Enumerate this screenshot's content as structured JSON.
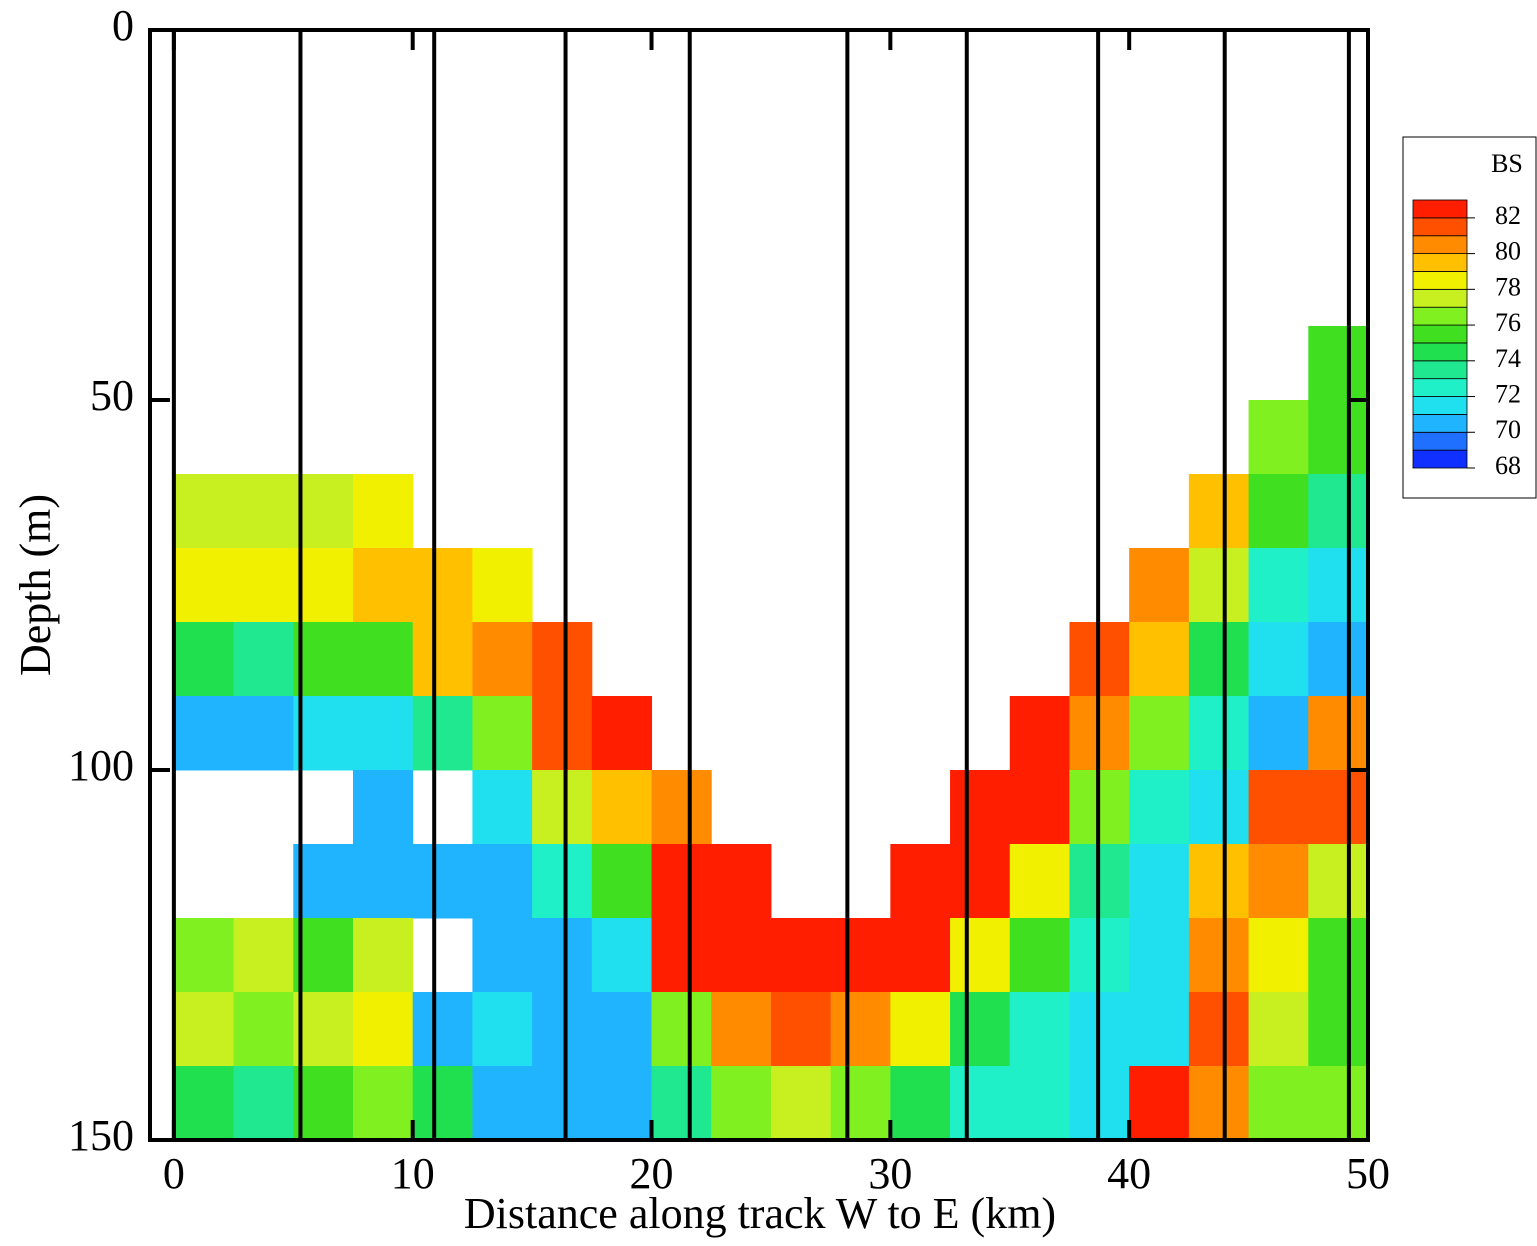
{
  "chart_data": {
    "type": "contour",
    "xlabel": "Distance along track W to E (km)",
    "ylabel": "Depth (m)",
    "xlim": [
      -1,
      50
    ],
    "xticks": [
      0,
      10,
      20,
      30,
      40,
      50
    ],
    "ylim": [
      0,
      150
    ],
    "yticks": [
      0,
      50,
      100,
      150
    ],
    "y_inverted": true,
    "x_edges": [
      0,
      2.5,
      5,
      7.5,
      10,
      12.5,
      15,
      17.5,
      20,
      22.5,
      25,
      27.5,
      30,
      32.5,
      35,
      37.5,
      40,
      42.5,
      45,
      47.5,
      50
    ],
    "y_edges": [
      0,
      10,
      20,
      30,
      40,
      50,
      60,
      70,
      80,
      90,
      100,
      110,
      120,
      130,
      140,
      150
    ],
    "z": [
      [
        null,
        null,
        null,
        null,
        null,
        null,
        77,
        78,
        74,
        70,
        null,
        null,
        76,
        77,
        74
      ],
      [
        null,
        null,
        null,
        null,
        null,
        null,
        77,
        78,
        73,
        70,
        null,
        null,
        77,
        76,
        73
      ],
      [
        null,
        null,
        null,
        null,
        null,
        null,
        77,
        78,
        75,
        71,
        null,
        70,
        75,
        77,
        75
      ],
      [
        null,
        null,
        null,
        null,
        null,
        null,
        78,
        79,
        75,
        71,
        70,
        70,
        77,
        78,
        76
      ],
      [
        null,
        null,
        null,
        null,
        null,
        null,
        null,
        79,
        79,
        73,
        null,
        70,
        null,
        70,
        74
      ],
      [
        null,
        null,
        null,
        null,
        null,
        null,
        null,
        78,
        80,
        76,
        71,
        70,
        70,
        71,
        70
      ],
      [
        null,
        null,
        null,
        null,
        null,
        null,
        null,
        null,
        81,
        81,
        77,
        72,
        70,
        70,
        70
      ],
      [
        null,
        null,
        null,
        null,
        null,
        null,
        null,
        null,
        null,
        82,
        79,
        75,
        71,
        70,
        70
      ],
      [
        null,
        null,
        null,
        null,
        null,
        null,
        null,
        null,
        null,
        null,
        80,
        82,
        82,
        76,
        73
      ],
      [
        null,
        null,
        null,
        null,
        null,
        null,
        null,
        null,
        null,
        null,
        null,
        82,
        82,
        80,
        76
      ],
      [
        null,
        null,
        null,
        null,
        null,
        null,
        null,
        null,
        null,
        null,
        null,
        null,
        82,
        81,
        77
      ],
      [
        null,
        null,
        null,
        null,
        null,
        null,
        null,
        null,
        null,
        null,
        null,
        null,
        82,
        80,
        76
      ],
      [
        null,
        null,
        null,
        null,
        null,
        null,
        null,
        null,
        null,
        null,
        null,
        82,
        82,
        78,
        74
      ],
      [
        null,
        null,
        null,
        null,
        null,
        null,
        null,
        null,
        null,
        null,
        82,
        82,
        78,
        74,
        72
      ],
      [
        null,
        null,
        null,
        null,
        null,
        null,
        null,
        null,
        null,
        82,
        82,
        78,
        75,
        72,
        72
      ],
      [
        null,
        null,
        null,
        null,
        null,
        null,
        null,
        null,
        81,
        80,
        76,
        73,
        72,
        71,
        71
      ],
      [
        null,
        null,
        null,
        null,
        null,
        null,
        null,
        80,
        79,
        76,
        72,
        71,
        71,
        71,
        82
      ],
      [
        null,
        null,
        null,
        null,
        null,
        null,
        79,
        77,
        74,
        72,
        71,
        79,
        80,
        81,
        80
      ],
      [
        null,
        null,
        null,
        null,
        null,
        76,
        75,
        72,
        71,
        70,
        81,
        80,
        78,
        77,
        76
      ],
      [
        null,
        null,
        null,
        null,
        75,
        75,
        73,
        71,
        70,
        80,
        81,
        77,
        75,
        75,
        76
      ]
    ],
    "stations": [
      0,
      5.3,
      10.9,
      16.4,
      21.6,
      28.2,
      33.2,
      38.7,
      44.0,
      49.2
    ],
    "colorbar_label": "BS",
    "levels": [
      68,
      69,
      70,
      71,
      72,
      73,
      74,
      75,
      76,
      77,
      78,
      79,
      80,
      81,
      82,
      83
    ],
    "colors": [
      "#1030ff",
      "#2070ff",
      "#20b4ff",
      "#20e0f0",
      "#20f0c8",
      "#20e890",
      "#20e050",
      "#40e020",
      "#80f020",
      "#c8f020",
      "#f0f000",
      "#ffc000",
      "#ff8c00",
      "#ff5000",
      "#ff1e00"
    ],
    "colorbar_ticks": [
      68,
      70,
      72,
      74,
      76,
      78,
      80,
      82
    ]
  }
}
